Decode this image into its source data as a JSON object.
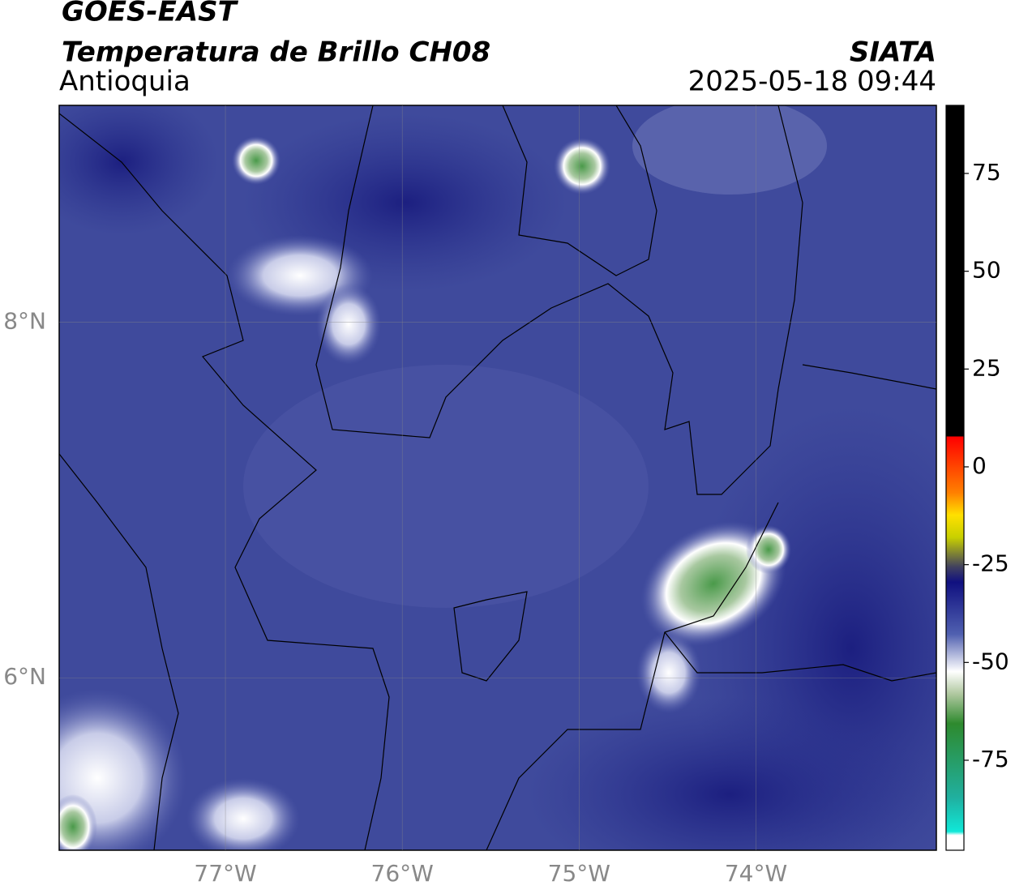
{
  "header": {
    "title": "GOES-EAST",
    "subtitle": "Temperatura de Brillo CH08",
    "region": "Antioquia",
    "agency": "SIATA",
    "datetime": "2025-05-18 09:44"
  },
  "map": {
    "xlim": [
      -77.94,
      -72.98
    ],
    "ylim": [
      5.03,
      9.22
    ],
    "xticks": [
      {
        "value": -77,
        "label": "77°W"
      },
      {
        "value": -76,
        "label": "76°W"
      },
      {
        "value": -75,
        "label": "75°W"
      },
      {
        "value": -74,
        "label": "74°W"
      }
    ],
    "yticks": [
      {
        "value": 8,
        "label": "8°N"
      },
      {
        "value": 6,
        "label": "6°N"
      }
    ]
  },
  "colorbar": {
    "lim": [
      -98,
      92.4
    ],
    "ticks": [
      75,
      50,
      25,
      0,
      -25,
      -50,
      -75
    ]
  }
}
